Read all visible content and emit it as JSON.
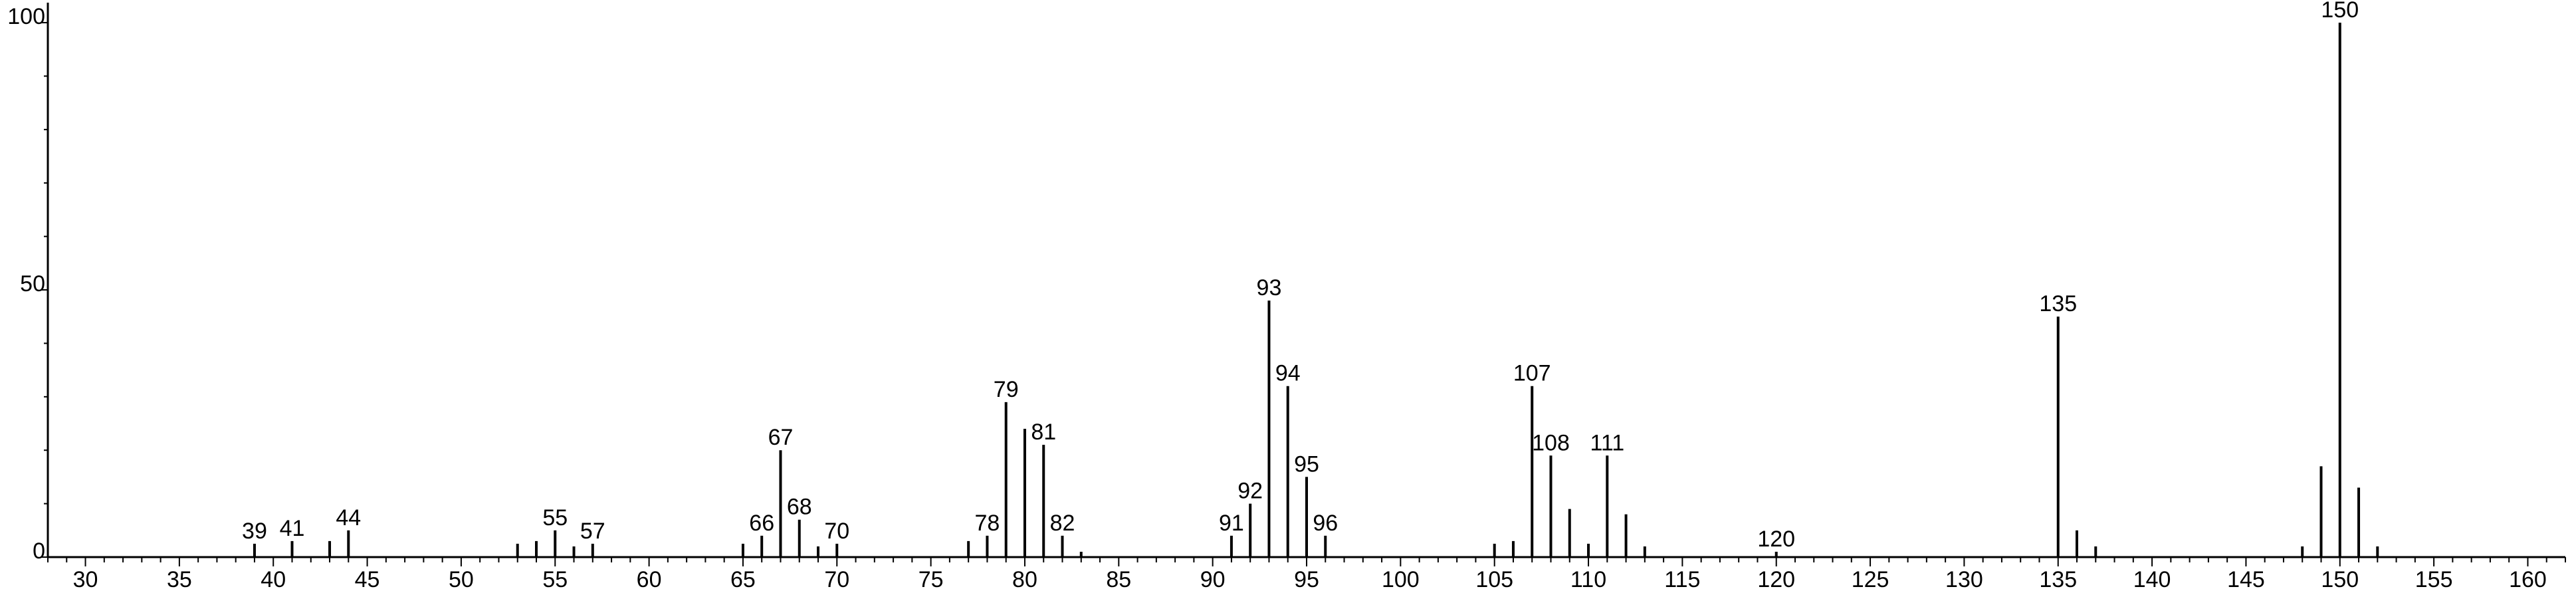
{
  "chart_data": {
    "type": "bar",
    "title": "",
    "xlabel": "",
    "ylabel": "",
    "xlim": [
      28,
      162
    ],
    "ylim": [
      0,
      102
    ],
    "grid": false,
    "x_tick_labels": [
      "30",
      "35",
      "40",
      "45",
      "50",
      "55",
      "60",
      "65",
      "70",
      "75",
      "80",
      "85",
      "90",
      "95",
      "100",
      "105",
      "110",
      "115",
      "120",
      "125",
      "130",
      "135",
      "140",
      "145",
      "150",
      "155",
      "160"
    ],
    "y_tick_labels": [
      "0",
      "50",
      "100"
    ],
    "peaks": [
      {
        "x": 39,
        "y": 2.5,
        "label": "39"
      },
      {
        "x": 41,
        "y": 3,
        "label": "41"
      },
      {
        "x": 43,
        "y": 3,
        "label": ""
      },
      {
        "x": 44,
        "y": 5,
        "label": "44"
      },
      {
        "x": 53,
        "y": 2.5,
        "label": ""
      },
      {
        "x": 54,
        "y": 3,
        "label": ""
      },
      {
        "x": 55,
        "y": 5,
        "label": "55"
      },
      {
        "x": 56,
        "y": 2,
        "label": ""
      },
      {
        "x": 57,
        "y": 2.5,
        "label": "57"
      },
      {
        "x": 65,
        "y": 2.5,
        "label": ""
      },
      {
        "x": 66,
        "y": 4,
        "label": "66"
      },
      {
        "x": 67,
        "y": 20,
        "label": "67"
      },
      {
        "x": 68,
        "y": 7,
        "label": "68"
      },
      {
        "x": 69,
        "y": 2,
        "label": ""
      },
      {
        "x": 70,
        "y": 2.5,
        "label": "70"
      },
      {
        "x": 77,
        "y": 3,
        "label": ""
      },
      {
        "x": 78,
        "y": 4,
        "label": "78"
      },
      {
        "x": 79,
        "y": 29,
        "label": "79"
      },
      {
        "x": 80,
        "y": 24,
        "label": ""
      },
      {
        "x": 81,
        "y": 21,
        "label": "81"
      },
      {
        "x": 82,
        "y": 4,
        "label": "82"
      },
      {
        "x": 83,
        "y": 1,
        "label": ""
      },
      {
        "x": 91,
        "y": 4,
        "label": "91"
      },
      {
        "x": 92,
        "y": 10,
        "label": "92"
      },
      {
        "x": 93,
        "y": 48,
        "label": "93"
      },
      {
        "x": 94,
        "y": 32,
        "label": "94"
      },
      {
        "x": 95,
        "y": 15,
        "label": "95"
      },
      {
        "x": 96,
        "y": 4,
        "label": "96"
      },
      {
        "x": 105,
        "y": 2.5,
        "label": ""
      },
      {
        "x": 106,
        "y": 3,
        "label": ""
      },
      {
        "x": 107,
        "y": 32,
        "label": "107"
      },
      {
        "x": 108,
        "y": 19,
        "label": "108"
      },
      {
        "x": 109,
        "y": 9,
        "label": ""
      },
      {
        "x": 110,
        "y": 2.5,
        "label": ""
      },
      {
        "x": 111,
        "y": 19,
        "label": "111"
      },
      {
        "x": 112,
        "y": 8,
        "label": ""
      },
      {
        "x": 113,
        "y": 2,
        "label": ""
      },
      {
        "x": 120,
        "y": 1,
        "label": "120"
      },
      {
        "x": 135,
        "y": 45,
        "label": "135"
      },
      {
        "x": 136,
        "y": 5,
        "label": ""
      },
      {
        "x": 137,
        "y": 2,
        "label": ""
      },
      {
        "x": 148,
        "y": 2,
        "label": ""
      },
      {
        "x": 149,
        "y": 17,
        "label": ""
      },
      {
        "x": 150,
        "y": 100,
        "label": "150"
      },
      {
        "x": 151,
        "y": 13,
        "label": ""
      },
      {
        "x": 152,
        "y": 2,
        "label": ""
      }
    ]
  },
  "colors": {
    "axis": "#000000",
    "bar": "#000000",
    "background": "#ffffff"
  }
}
